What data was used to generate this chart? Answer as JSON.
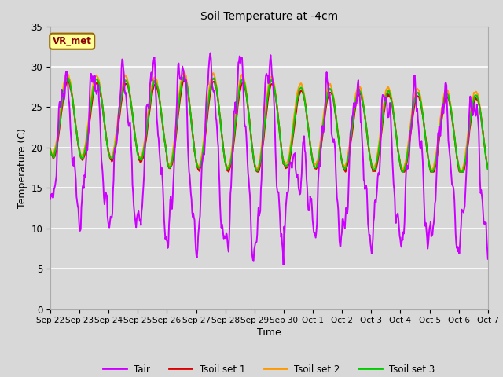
{
  "title": "Soil Temperature at -4cm",
  "xlabel": "Time",
  "ylabel": "Temperature (C)",
  "ylim": [
    0,
    35
  ],
  "xlim_days": 15,
  "fig_bg_color": "#d8d8d8",
  "plot_bg_color": "#d8d8d8",
  "grid_color": "#ffffff",
  "colors": {
    "Tair": "#cc00ff",
    "Tsoil_set1": "#dd0000",
    "Tsoil_set2": "#ff9900",
    "Tsoil_set3": "#00cc00"
  },
  "legend_labels": [
    "Tair",
    "Tsoil set 1",
    "Tsoil set 2",
    "Tsoil set 3"
  ],
  "xtick_labels": [
    "Sep 22",
    "Sep 23",
    "Sep 24",
    "Sep 25",
    "Sep 26",
    "Sep 27",
    "Sep 28",
    "Sep 29",
    "Sep 30",
    "Oct 1",
    "Oct 2",
    "Oct 3",
    "Oct 4",
    "Oct 5",
    "Oct 6",
    "Oct 7"
  ],
  "annotation_text": "VR_met",
  "annotation_bg": "#ffff99",
  "annotation_border": "#996600"
}
